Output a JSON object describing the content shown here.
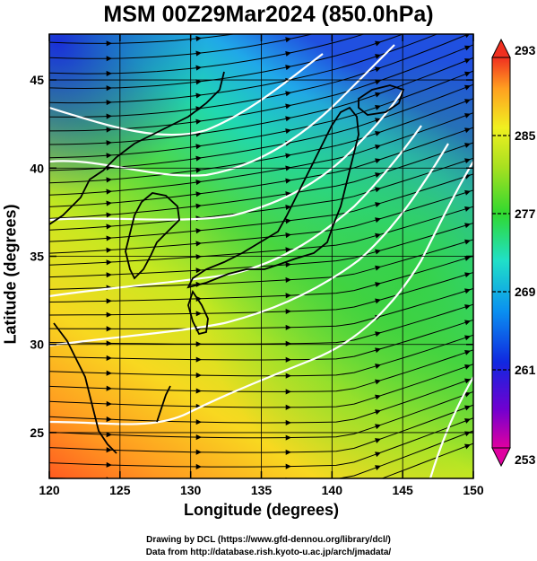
{
  "title": "MSM 00Z29Mar2024 (850.0hPa)",
  "xaxis": {
    "label": "Longitude (degrees)",
    "ticks": [
      "120",
      "125",
      "130",
      "135",
      "140",
      "145",
      "150"
    ],
    "values": [
      120,
      125,
      130,
      135,
      140,
      145,
      150
    ],
    "range": [
      120,
      150
    ]
  },
  "yaxis": {
    "label": "Latitude  (degrees)",
    "ticks": [
      "25",
      "30",
      "35",
      "40",
      "45"
    ],
    "values": [
      25,
      30,
      35,
      40,
      45
    ],
    "range": [
      22.4,
      47.6
    ]
  },
  "colorbar": {
    "labels": [
      "293",
      "285",
      "277",
      "269",
      "261",
      "253"
    ],
    "values": [
      293,
      285,
      277,
      269,
      261,
      253
    ],
    "range": [
      253,
      293
    ],
    "colors": [
      "#d7008f",
      "#6a00d0",
      "#1030e0",
      "#0a9af0",
      "#20e0c0",
      "#30d830",
      "#a8e020",
      "#f0f020",
      "#ffa020",
      "#f04020"
    ]
  },
  "credits": {
    "line1": "Drawing by DCL (https://www.gfd-dennou.org/library/dcl/)",
    "line2": "Data from http://database.rish.kyoto-u.ac.jp/arch/jmadata/"
  },
  "map": {
    "field": "temperature (K) with streamlines and geopotential height contours",
    "palette": {
      "warm": "#ff7a20",
      "mid": "#f0e020",
      "green": "#40d040",
      "cyan": "#20d8c8",
      "cold": "#1a40e0",
      "contour": "#ffffff",
      "coast": "#000000"
    }
  }
}
